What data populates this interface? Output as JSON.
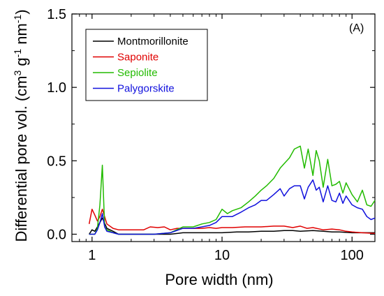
{
  "chart_data": {
    "type": "line",
    "panel_label": "(A)",
    "xlabel": "Pore width (nm)",
    "ylabel_main": "Differential pore vol. (cm",
    "ylabel_sup1": "3",
    "ylabel_mid": " g",
    "ylabel_sup2": "-1",
    "ylabel_mid2": " nm",
    "ylabel_sup3": "-1",
    "ylabel_end": ")",
    "x_scale": "log",
    "xlim": [
      0.7,
      150
    ],
    "ylim": [
      -0.05,
      1.5
    ],
    "x_ticks": [
      1,
      10,
      100
    ],
    "x_tick_labels": [
      "1",
      "10",
      "100"
    ],
    "y_ticks": [
      0.0,
      0.5,
      1.0,
      1.5
    ],
    "y_tick_labels": [
      "0.0",
      "0.5",
      "1.0",
      "1.5"
    ],
    "legend_position": "top-left",
    "grid": false,
    "series": [
      {
        "name": "Montmorillonite",
        "color": "#000000",
        "x": [
          0.95,
          1.0,
          1.05,
          1.1,
          1.15,
          1.2,
          1.3,
          1.45,
          1.6,
          2.0,
          2.5,
          3.0,
          4.0,
          5.0,
          6.0,
          8.0,
          10.0,
          13.0,
          16.0,
          20.0,
          25.0,
          30.0,
          35.0,
          40.0,
          50.0,
          60.0,
          70.0,
          80.0,
          100.0,
          120.0,
          150.0
        ],
        "y": [
          0.0,
          0.03,
          0.02,
          0.05,
          0.08,
          0.11,
          0.04,
          0.02,
          0.0,
          0.0,
          0.0,
          0.0,
          0.0,
          0.01,
          0.01,
          0.01,
          0.01,
          0.015,
          0.015,
          0.02,
          0.02,
          0.025,
          0.025,
          0.02,
          0.025,
          0.02,
          0.015,
          0.015,
          0.01,
          0.01,
          0.01
        ]
      },
      {
        "name": "Saponite",
        "color": "#e00000",
        "x": [
          0.95,
          1.0,
          1.05,
          1.1,
          1.15,
          1.2,
          1.3,
          1.45,
          1.6,
          2.0,
          2.5,
          2.8,
          3.2,
          3.6,
          4.0,
          4.5,
          5.0,
          6.0,
          7.0,
          8.0,
          9.0,
          10.0,
          12.0,
          15.0,
          20.0,
          25.0,
          30.0,
          35.0,
          40.0,
          45.0,
          50.0,
          60.0,
          70.0,
          80.0,
          90.0,
          100.0,
          120.0,
          150.0
        ],
        "y": [
          0.07,
          0.17,
          0.13,
          0.09,
          0.12,
          0.17,
          0.07,
          0.04,
          0.03,
          0.03,
          0.03,
          0.05,
          0.045,
          0.05,
          0.03,
          0.04,
          0.04,
          0.04,
          0.04,
          0.045,
          0.04,
          0.045,
          0.045,
          0.05,
          0.05,
          0.055,
          0.055,
          0.045,
          0.055,
          0.04,
          0.045,
          0.03,
          0.035,
          0.03,
          0.02,
          0.015,
          0.01,
          0.005
        ]
      },
      {
        "name": "Sepiolite",
        "color": "#22bb00",
        "x": [
          0.95,
          1.05,
          1.1,
          1.15,
          1.2,
          1.25,
          1.3,
          1.45,
          1.6,
          2.0,
          2.5,
          3.0,
          4.0,
          5.0,
          6.0,
          7.0,
          8.0,
          9.0,
          10.0,
          11.0,
          12.0,
          14.0,
          16.0,
          18.0,
          20.0,
          22.0,
          25.0,
          28.0,
          30.0,
          33.0,
          36.0,
          40.0,
          43.0,
          46.0,
          50.0,
          53.0,
          56.0,
          60.0,
          65.0,
          70.0,
          75.0,
          80.0,
          85.0,
          90.0,
          100.0,
          110.0,
          120.0,
          130.0,
          140.0,
          150.0
        ],
        "y": [
          0.0,
          0.0,
          0.04,
          0.2,
          0.47,
          0.05,
          0.03,
          0.01,
          0.0,
          0.0,
          0.0,
          0.0,
          0.01,
          0.05,
          0.05,
          0.07,
          0.08,
          0.1,
          0.17,
          0.14,
          0.16,
          0.18,
          0.22,
          0.26,
          0.3,
          0.33,
          0.38,
          0.45,
          0.48,
          0.52,
          0.58,
          0.6,
          0.45,
          0.58,
          0.4,
          0.57,
          0.5,
          0.32,
          0.51,
          0.33,
          0.34,
          0.36,
          0.28,
          0.35,
          0.27,
          0.22,
          0.3,
          0.2,
          0.19,
          0.23
        ]
      },
      {
        "name": "Palygorskite",
        "color": "#1010dd",
        "x": [
          0.95,
          1.05,
          1.1,
          1.15,
          1.2,
          1.25,
          1.3,
          1.45,
          1.6,
          2.0,
          2.5,
          3.0,
          4.0,
          5.0,
          6.0,
          7.0,
          8.0,
          9.0,
          10.0,
          12.0,
          14.0,
          16.0,
          18.0,
          20.0,
          22.0,
          25.0,
          28.0,
          30.0,
          33.0,
          36.0,
          40.0,
          43.0,
          46.0,
          50.0,
          53.0,
          56.0,
          60.0,
          65.0,
          70.0,
          75.0,
          80.0,
          85.0,
          90.0,
          100.0,
          110.0,
          120.0,
          130.0,
          140.0,
          150.0
        ],
        "y": [
          0.0,
          0.0,
          0.03,
          0.08,
          0.14,
          0.05,
          0.02,
          0.01,
          0.0,
          0.0,
          0.0,
          0.0,
          0.01,
          0.04,
          0.04,
          0.05,
          0.06,
          0.08,
          0.12,
          0.12,
          0.15,
          0.18,
          0.2,
          0.23,
          0.23,
          0.27,
          0.31,
          0.26,
          0.31,
          0.33,
          0.33,
          0.24,
          0.32,
          0.37,
          0.3,
          0.32,
          0.22,
          0.33,
          0.23,
          0.22,
          0.28,
          0.21,
          0.26,
          0.2,
          0.18,
          0.17,
          0.12,
          0.1,
          0.11
        ]
      }
    ]
  }
}
